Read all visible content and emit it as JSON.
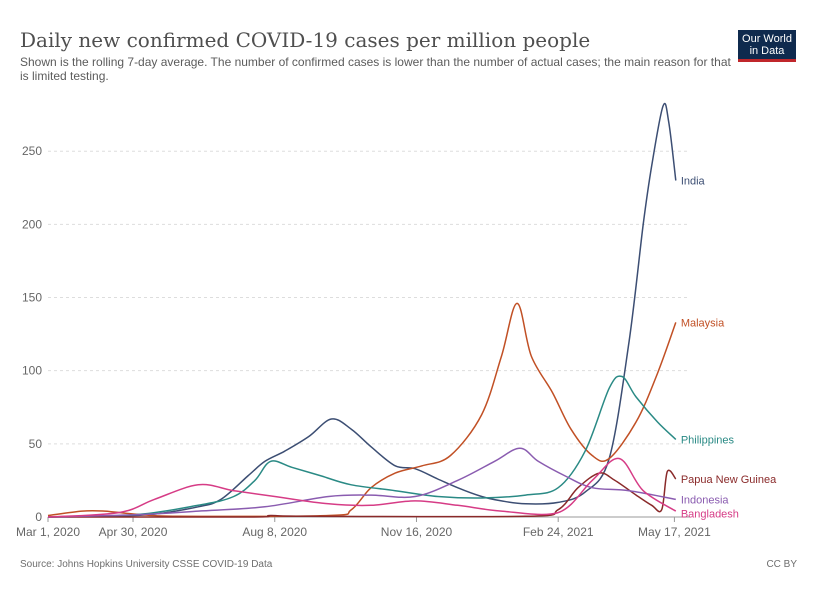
{
  "title": "Daily new confirmed COVID-19 cases per million people",
  "subtitle": "Shown is the rolling 7-day average. The number of confirmed cases is lower than the number of actual cases; the main reason for that is limited testing.",
  "logo": {
    "line1": "Our World",
    "line2": "in Data",
    "colors": {
      "background": "#0f2a4e",
      "accent": "#c0262b"
    }
  },
  "source": "Source: Johns Hopkins University CSSE COVID-19 Data",
  "license": "CC BY",
  "chart_data": {
    "type": "line",
    "title": "Daily new confirmed COVID-19 cases per million people",
    "x_type": "date",
    "x_ticks": [
      "2020-03-01",
      "2020-04-30",
      "2020-08-08",
      "2020-11-16",
      "2021-02-24",
      "2021-05-17"
    ],
    "x_tick_labels": [
      "Mar 1, 2020",
      "Apr 30, 2020",
      "Aug 8, 2020",
      "Nov 16, 2020",
      "Feb 24, 2021",
      "May 17, 2021"
    ],
    "xlim": [
      "2020-03-01",
      "2021-05-28"
    ],
    "y_ticks": [
      0,
      50,
      100,
      150,
      200,
      250
    ],
    "ylim": [
      0,
      285
    ],
    "grid": "horizontal dashed",
    "legend": "inline labels at line ends (right)",
    "series": [
      {
        "name": "India",
        "color": "#3c4e73",
        "points": [
          [
            "2020-03-01",
            0
          ],
          [
            "2020-04-15",
            0.5
          ],
          [
            "2020-05-15",
            2
          ],
          [
            "2020-06-15",
            7
          ],
          [
            "2020-07-01",
            12
          ],
          [
            "2020-07-20",
            28
          ],
          [
            "2020-08-01",
            38
          ],
          [
            "2020-08-15",
            45
          ],
          [
            "2020-09-01",
            55
          ],
          [
            "2020-09-17",
            67
          ],
          [
            "2020-10-01",
            60
          ],
          [
            "2020-10-15",
            48
          ],
          [
            "2020-11-01",
            35
          ],
          [
            "2020-11-15",
            33
          ],
          [
            "2020-12-01",
            26
          ],
          [
            "2020-12-15",
            20
          ],
          [
            "2021-01-01",
            14
          ],
          [
            "2021-01-15",
            11
          ],
          [
            "2021-02-01",
            9
          ],
          [
            "2021-02-24",
            10
          ],
          [
            "2021-03-15",
            17
          ],
          [
            "2021-04-01",
            40
          ],
          [
            "2021-04-15",
            120
          ],
          [
            "2021-04-25",
            200
          ],
          [
            "2021-05-01",
            240
          ],
          [
            "2021-05-09",
            281
          ],
          [
            "2021-05-13",
            270
          ],
          [
            "2021-05-18",
            230
          ]
        ]
      },
      {
        "name": "Malaysia",
        "color": "#c15025",
        "points": [
          [
            "2020-03-01",
            1
          ],
          [
            "2020-03-25",
            4
          ],
          [
            "2020-04-10",
            4
          ],
          [
            "2020-05-01",
            2
          ],
          [
            "2020-06-01",
            0.5
          ],
          [
            "2020-09-15",
            1
          ],
          [
            "2020-10-01",
            5
          ],
          [
            "2020-10-15",
            20
          ],
          [
            "2020-11-01",
            30
          ],
          [
            "2020-11-20",
            35
          ],
          [
            "2020-12-10",
            42
          ],
          [
            "2021-01-01",
            70
          ],
          [
            "2021-01-15",
            110
          ],
          [
            "2021-01-26",
            146
          ],
          [
            "2021-02-05",
            110
          ],
          [
            "2021-02-20",
            85
          ],
          [
            "2021-03-05",
            60
          ],
          [
            "2021-03-20",
            42
          ],
          [
            "2021-04-01",
            40
          ],
          [
            "2021-04-20",
            65
          ],
          [
            "2021-05-05",
            98
          ],
          [
            "2021-05-18",
            133
          ]
        ]
      },
      {
        "name": "Philippines",
        "color": "#2a8a85",
        "points": [
          [
            "2020-03-01",
            0
          ],
          [
            "2020-05-01",
            1.5
          ],
          [
            "2020-06-15",
            8
          ],
          [
            "2020-07-10",
            14
          ],
          [
            "2020-07-25",
            25
          ],
          [
            "2020-08-05",
            38
          ],
          [
            "2020-08-20",
            34
          ],
          [
            "2020-09-10",
            28
          ],
          [
            "2020-10-01",
            22
          ],
          [
            "2020-11-01",
            18
          ],
          [
            "2020-12-01",
            14
          ],
          [
            "2021-01-01",
            13
          ],
          [
            "2021-02-01",
            15
          ],
          [
            "2021-02-24",
            20
          ],
          [
            "2021-03-15",
            45
          ],
          [
            "2021-04-01",
            88
          ],
          [
            "2021-04-10",
            96
          ],
          [
            "2021-04-20",
            82
          ],
          [
            "2021-05-05",
            65
          ],
          [
            "2021-05-18",
            53
          ]
        ]
      },
      {
        "name": "Papua New Guinea",
        "color": "#8a2a2a",
        "points": [
          [
            "2020-03-01",
            0
          ],
          [
            "2020-07-20",
            0
          ],
          [
            "2020-08-05",
            1
          ],
          [
            "2020-09-01",
            0.5
          ],
          [
            "2021-02-01",
            0.5
          ],
          [
            "2021-02-24",
            5
          ],
          [
            "2021-03-10",
            20
          ],
          [
            "2021-03-25",
            30
          ],
          [
            "2021-04-05",
            25
          ],
          [
            "2021-04-20",
            15
          ],
          [
            "2021-05-01",
            8
          ],
          [
            "2021-05-08",
            5
          ],
          [
            "2021-05-12",
            31
          ],
          [
            "2021-05-18",
            26
          ]
        ]
      },
      {
        "name": "Indonesia",
        "color": "#8a5cb0",
        "points": [
          [
            "2020-03-01",
            0
          ],
          [
            "2020-05-01",
            1.5
          ],
          [
            "2020-06-15",
            4
          ],
          [
            "2020-08-01",
            7
          ],
          [
            "2020-09-15",
            14
          ],
          [
            "2020-10-15",
            15
          ],
          [
            "2020-11-15",
            14
          ],
          [
            "2020-12-15",
            25
          ],
          [
            "2021-01-10",
            38
          ],
          [
            "2021-01-28",
            47
          ],
          [
            "2021-02-10",
            38
          ],
          [
            "2021-03-01",
            28
          ],
          [
            "2021-03-20",
            20
          ],
          [
            "2021-04-15",
            18
          ],
          [
            "2021-05-18",
            12
          ]
        ]
      },
      {
        "name": "Bangladesh",
        "color": "#d63c86",
        "points": [
          [
            "2020-03-01",
            0
          ],
          [
            "2020-04-20",
            3
          ],
          [
            "2020-05-15",
            12
          ],
          [
            "2020-06-15",
            22
          ],
          [
            "2020-07-10",
            18
          ],
          [
            "2020-08-08",
            14
          ],
          [
            "2020-09-15",
            9
          ],
          [
            "2020-10-15",
            8
          ],
          [
            "2020-11-15",
            11
          ],
          [
            "2020-12-15",
            8
          ],
          [
            "2021-01-15",
            4
          ],
          [
            "2021-02-24",
            3
          ],
          [
            "2021-03-20",
            25
          ],
          [
            "2021-04-08",
            40
          ],
          [
            "2021-04-25",
            18
          ],
          [
            "2021-05-18",
            4
          ]
        ]
      }
    ]
  }
}
